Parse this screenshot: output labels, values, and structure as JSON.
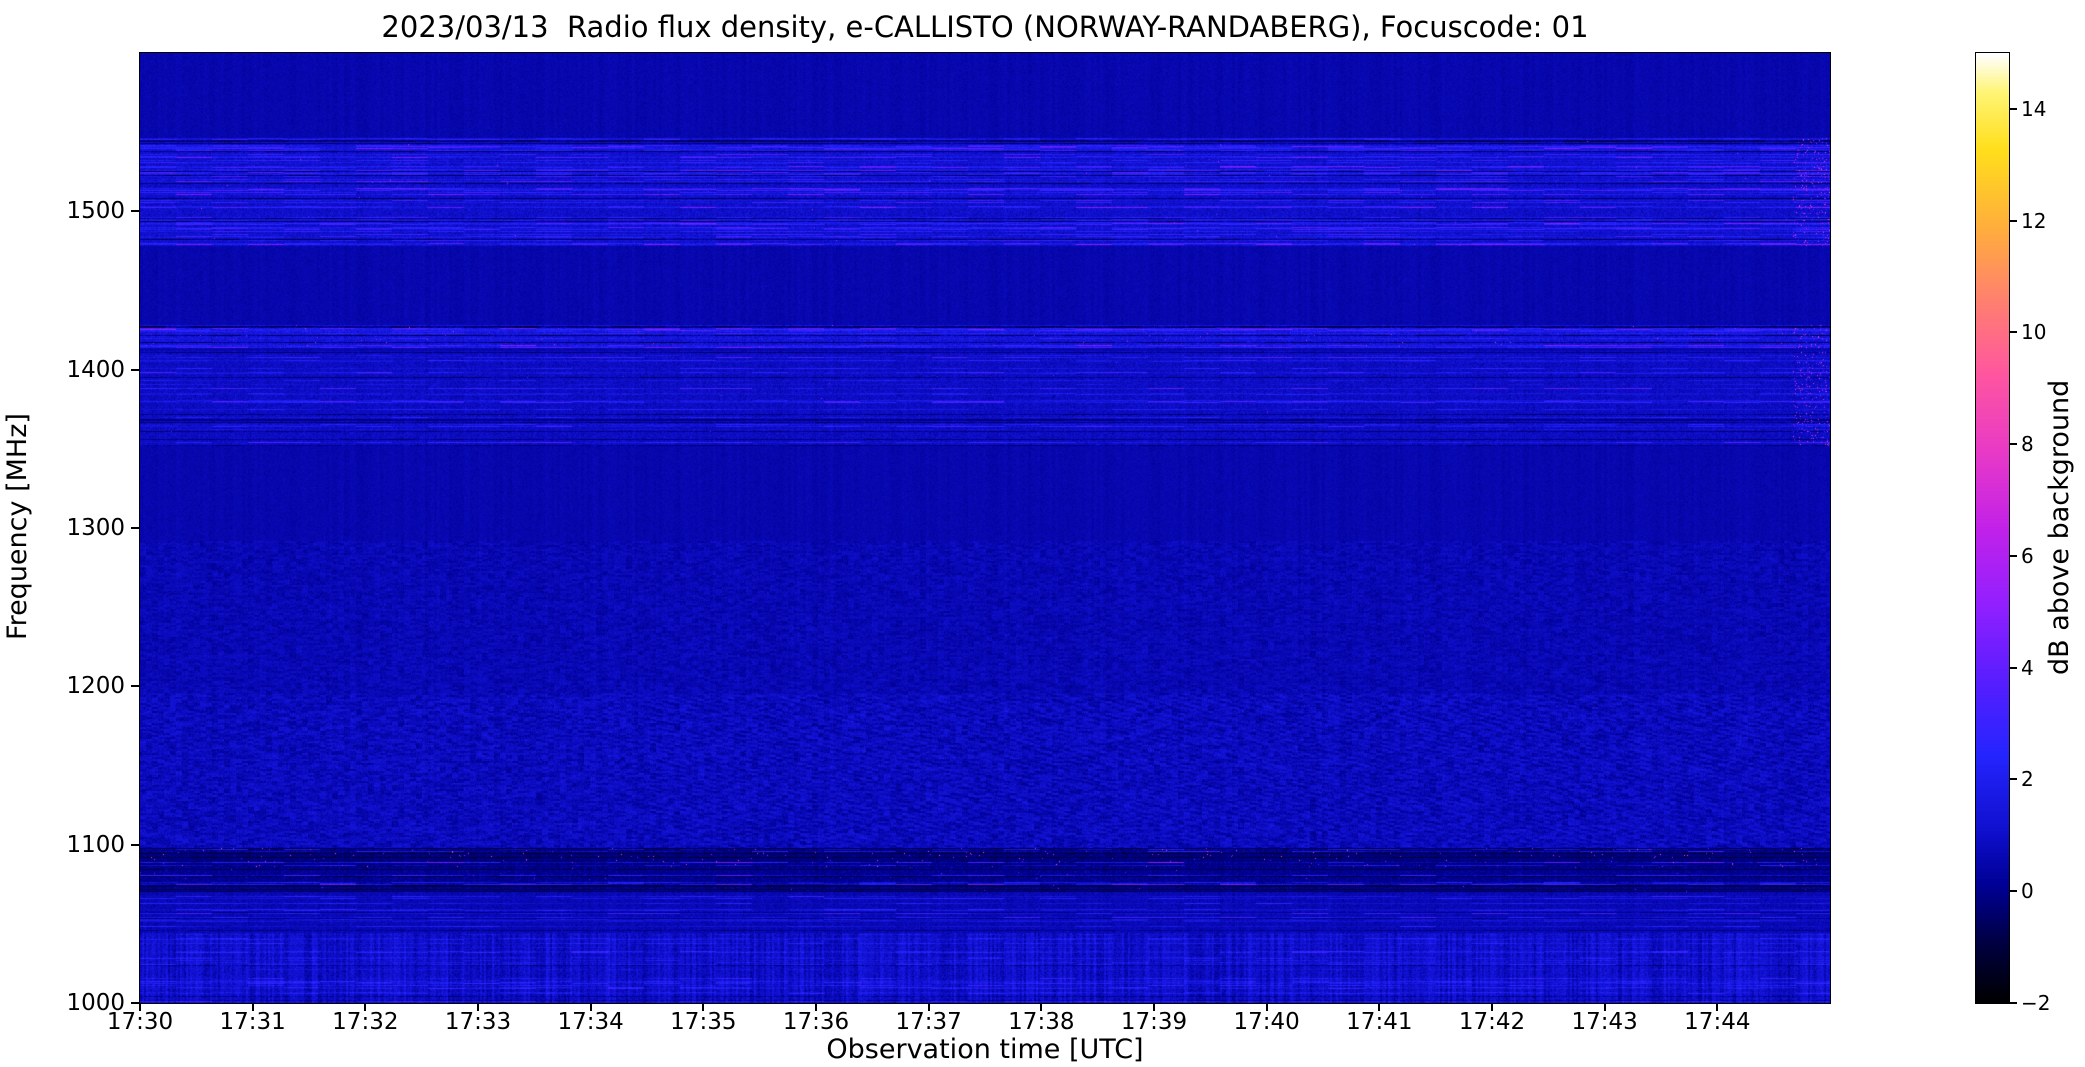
{
  "chart_data": {
    "type": "heatmap",
    "title": "2023/03/13  Radio flux density, e-CALLISTO (NORWAY-RANDABERG), Focuscode: 01",
    "xlabel": "Observation time [UTC]",
    "ylabel": "Frequency [MHz]",
    "x_tick_labels": [
      "17:30",
      "17:31",
      "17:32",
      "17:33",
      "17:34",
      "17:35",
      "17:36",
      "17:37",
      "17:38",
      "17:39",
      "17:40",
      "17:41",
      "17:42",
      "17:43",
      "17:44"
    ],
    "x_range_minutes": 15,
    "x_start_utc": "17:30",
    "x_end_utc": "17:45",
    "y_min_mhz": 1000,
    "y_max_mhz": 1600,
    "y_ticks_mhz": [
      1000,
      1100,
      1200,
      1300,
      1400,
      1500
    ],
    "colorbar": {
      "label": "dB above background",
      "min_db": -2,
      "max_db": 15,
      "ticks_db": [
        -2,
        0,
        2,
        4,
        6,
        8,
        10,
        12,
        14
      ],
      "colormap_stops": [
        [
          0.0,
          "#000002"
        ],
        [
          0.06,
          "#000040"
        ],
        [
          0.12,
          "#000092"
        ],
        [
          0.18,
          "#1010cf"
        ],
        [
          0.26,
          "#2525ff"
        ],
        [
          0.34,
          "#5a1eff"
        ],
        [
          0.42,
          "#9420ff"
        ],
        [
          0.5,
          "#c322ea"
        ],
        [
          0.58,
          "#e83ac8"
        ],
        [
          0.66,
          "#ff55a2"
        ],
        [
          0.74,
          "#ff8070"
        ],
        [
          0.82,
          "#ffb03c"
        ],
        [
          0.9,
          "#ffdf1c"
        ],
        [
          0.96,
          "#fff575"
        ],
        [
          1.0,
          "#ffffff"
        ]
      ]
    },
    "background": {
      "base_db": 0.5,
      "noise_db": 0.45,
      "column_noise_db": 0.18
    },
    "bands": [
      {
        "name": "rfi-1478-1546",
        "f_low": 1478,
        "f_high": 1546,
        "base_db": 0.5,
        "noise_db": 0.9,
        "streak_density": 0.4,
        "streak_gain": 1.7,
        "dark_density": 0.12,
        "dark_gain": 1.5,
        "speck_prob": 0.0004,
        "speck_min": 2.5,
        "speck_max": 7,
        "edge_specks": true,
        "description": "Broad RFI band of horizontal blue streaks between ~1480 and ~1545 MHz"
      },
      {
        "name": "line-1420",
        "f_low": 1414,
        "f_high": 1428,
        "base_db": 0.8,
        "noise_db": 1.1,
        "streak_density": 0.5,
        "streak_gain": 1.5,
        "dark_density": 0.18,
        "dark_gain": 1.8,
        "speck_prob": 0.002,
        "speck_min": 3,
        "speck_max": 8,
        "edge_specks": true,
        "description": "Narrow interference line near 1420 MHz with pink bursts"
      },
      {
        "name": "rfi-1352-1412",
        "f_low": 1352,
        "f_high": 1412,
        "base_db": 0.35,
        "noise_db": 0.8,
        "streak_density": 0.3,
        "streak_gain": 1.2,
        "dark_density": 0.1,
        "dark_gain": 1.1,
        "speck_prob": 0.0002,
        "speck_min": 2.5,
        "speck_max": 5,
        "edge_specks": true,
        "description": "RFI band with faint horizontal streaks 1352-1412 MHz"
      },
      {
        "name": "mottle-1195-1292",
        "f_low": 1195,
        "f_high": 1292,
        "base_db": 0.1,
        "noise_db": 0.5,
        "mottle": 0.6,
        "description": "Faint mottled noise 1195-1292 MHz"
      },
      {
        "name": "mottle-1098-1195",
        "f_low": 1098,
        "f_high": 1195,
        "base_db": 0.25,
        "noise_db": 0.7,
        "mottle": 0.9,
        "diag_stripe": 0.35,
        "diag_start_frac": 0.3,
        "description": "Mottled noise with diagonal striping 1098-1195 MHz"
      },
      {
        "name": "rfi-1090",
        "f_low": 1086,
        "f_high": 1098,
        "base_db": -0.7,
        "noise_db": 0.9,
        "streak_density": 0.45,
        "streak_gain": 2.4,
        "dark_density": 0.2,
        "dark_gain": 1.0,
        "speck_prob": 0.006,
        "speck_min": 3.5,
        "speck_max": 9.5,
        "description": "Strong dark RFI strip near 1090 MHz with bright pink bursts"
      },
      {
        "name": "rfi-1070-1086",
        "f_low": 1070,
        "f_high": 1086,
        "base_db": -0.45,
        "noise_db": 0.8,
        "streak_density": 0.3,
        "streak_gain": 1.9,
        "dark_density": 0.25,
        "dark_gain": 1.0,
        "speck_prob": 0.0008,
        "speck_min": 2.5,
        "speck_max": 6,
        "description": "Dark strip with blue streaks 1070-1086 MHz"
      },
      {
        "name": "streaks-1044-1070",
        "f_low": 1044,
        "f_high": 1070,
        "base_db": 0.1,
        "noise_db": 0.6,
        "streak_density": 0.28,
        "streak_gain": 1.5,
        "dark_density": 0.08,
        "dark_gain": 0.7,
        "description": "Blue streak lines 1044-1070 MHz"
      },
      {
        "name": "noise-1000-1044",
        "f_low": 1000,
        "f_high": 1044,
        "base_db": 0.45,
        "noise_db": 0.9,
        "streak_density": 0.3,
        "streak_gain": 0.9,
        "dark_density": 0.1,
        "dark_gain": 0.8,
        "col_stripe": 0.9,
        "description": "Noisy band with vertical striations 1000-1044 MHz"
      }
    ],
    "right_edge": {
      "start_frac": 0.978,
      "speck_prob": 0.06,
      "speck_min": 1.5,
      "speck_max": 9,
      "description": "Colored speckle burst at the right edge of the spectrogram"
    }
  }
}
